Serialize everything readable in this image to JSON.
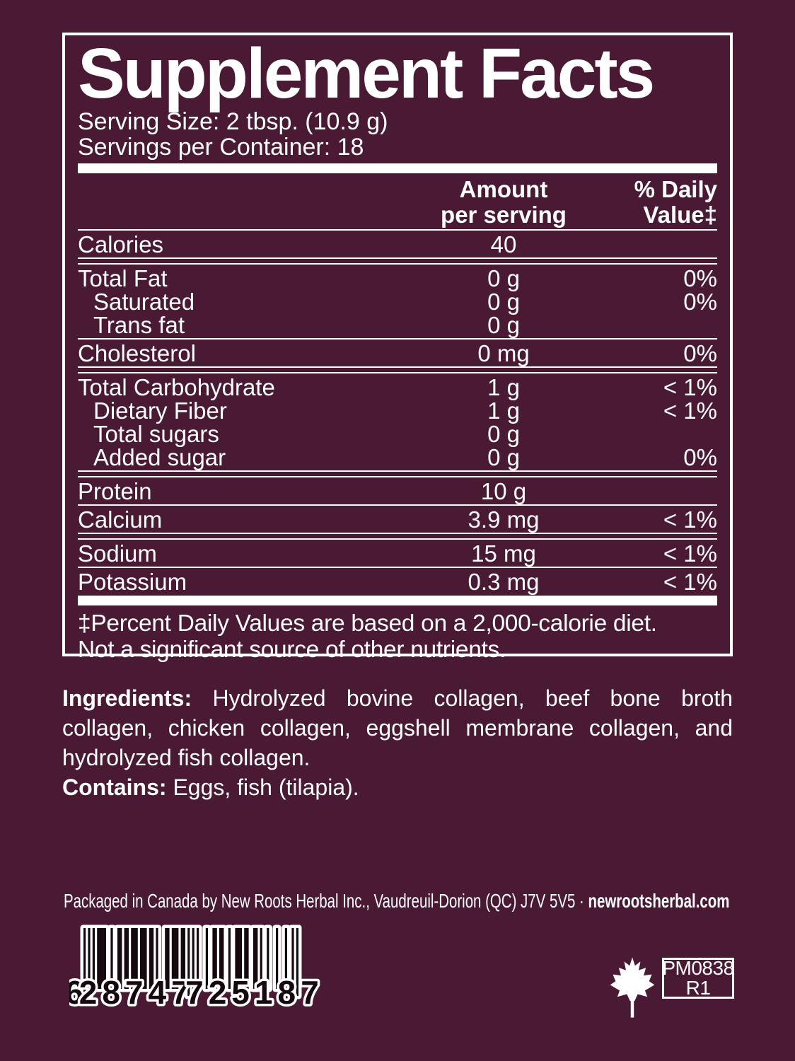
{
  "colors": {
    "background": "#4a1a35",
    "foreground": "#ffffff",
    "barcode_ink": "#15090f"
  },
  "supplement_facts": {
    "title": "Supplement Facts",
    "serving_size": "Serving Size: 2 tbsp. (10.9 g)",
    "servings_per_container": "Servings per Container: 18",
    "columns": {
      "amount_line1": "Amount",
      "amount_line2": "per serving",
      "dv_line1": "% Daily",
      "dv_line2": "Value‡"
    },
    "rows": [
      {
        "name": "Calories",
        "amount": "40",
        "dv": "",
        "indent": false,
        "sep_after": "double"
      },
      {
        "name": "Total Fat",
        "amount": "0 g",
        "dv": "0%",
        "indent": false,
        "sep_after": "none"
      },
      {
        "name": "Saturated",
        "amount": "0 g",
        "dv": "0%",
        "indent": true,
        "sep_after": "none"
      },
      {
        "name": "Trans fat",
        "amount": "0 g",
        "dv": "",
        "indent": true,
        "sep_after": "single"
      },
      {
        "name": "Cholesterol",
        "amount": "0 mg",
        "dv": "0%",
        "indent": false,
        "sep_after": "double"
      },
      {
        "name": "Total Carbohydrate",
        "amount": "1 g",
        "dv": "< 1%",
        "indent": false,
        "sep_after": "none"
      },
      {
        "name": "Dietary Fiber",
        "amount": "1 g",
        "dv": "< 1%",
        "indent": true,
        "sep_after": "none"
      },
      {
        "name": "Total sugars",
        "amount": "0 g",
        "dv": "",
        "indent": true,
        "sep_after": "none"
      },
      {
        "name": "Added sugar",
        "amount": "0 g",
        "dv": "0%",
        "indent": true,
        "sep_after": "double"
      },
      {
        "name": "Protein",
        "amount": "10 g",
        "dv": "",
        "indent": false,
        "sep_after": "single"
      },
      {
        "name": "Calcium",
        "amount": "3.9 mg",
        "dv": "< 1%",
        "indent": false,
        "sep_after": "double"
      },
      {
        "name": "Sodium",
        "amount": "15 mg",
        "dv": "< 1%",
        "indent": false,
        "sep_after": "single"
      },
      {
        "name": "Potassium",
        "amount": "0.3 mg",
        "dv": "< 1%",
        "indent": false,
        "sep_after": "thick"
      }
    ],
    "footnote_line1": "‡Percent Daily Values are based on a 2,000-calorie diet.",
    "footnote_line2": "Not a significant source of other nutrients."
  },
  "ingredients": {
    "label": "Ingredients:",
    "text": " Hydrolyzed bovine collagen, beef bone broth collagen, chicken collagen, eggshell membrane collagen, and hydrolyzed fish collagen.",
    "contains_label": "Contains:",
    "contains_text": " Eggs, fish (tilapia)."
  },
  "footer": {
    "packaged_text": "Packaged in Canada by New Roots Herbal Inc., Vaudreuil-Dorion (QC) J7V 5V5 · ",
    "website": "newrootsherbal.com",
    "barcode": {
      "value": "628747725187",
      "left_digit": "6",
      "group1": "28747",
      "group2": "72518",
      "right_digit": "7"
    },
    "product_code_line1": "PM0838",
    "product_code_line2": "R1",
    "maple_leaf_icon": "maple-leaf"
  }
}
